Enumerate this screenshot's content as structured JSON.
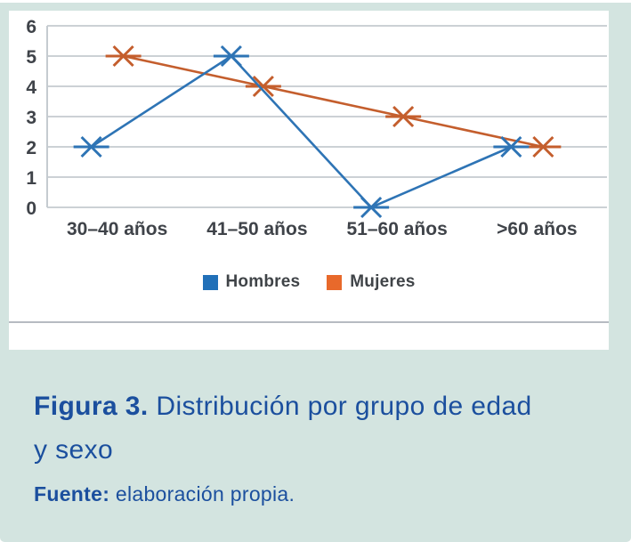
{
  "chart_data": {
    "type": "line",
    "categories": [
      "30–40 años",
      "41–50 años",
      "51–60 años",
      ">60 años"
    ],
    "series": [
      {
        "name": "Hombres",
        "values": [
          2,
          5,
          0,
          2
        ],
        "line_color": "#2e74b5",
        "legend_color": "#2170b8"
      },
      {
        "name": "Mujeres",
        "values": [
          5,
          4,
          3,
          2
        ],
        "line_color": "#c45e2d",
        "legend_color": "#e8692b"
      }
    ],
    "title": "",
    "xlabel": "",
    "ylabel": "",
    "ylim": [
      0,
      6
    ],
    "yticks": [
      0,
      1,
      2,
      3,
      4,
      5,
      6
    ],
    "grid": true,
    "marker_style": "x-with-dash",
    "legend_position": "bottom"
  },
  "caption": {
    "label": "Figura 3.",
    "title_line1": "Distribución por grupo de edad",
    "title_line2": "y sexo",
    "source_label": "Fuente:",
    "source_text": "elaboración propia."
  },
  "colors": {
    "card_background": "#d3e4e0",
    "panel_background": "#ffffff",
    "caption_blue": "#1b4f9e",
    "gridline": "#ccd1d5",
    "axis_line": "#c5cbd0",
    "tick_text": "#3f4349",
    "legend_text": "#404448",
    "separator": "#b6bbc2"
  }
}
